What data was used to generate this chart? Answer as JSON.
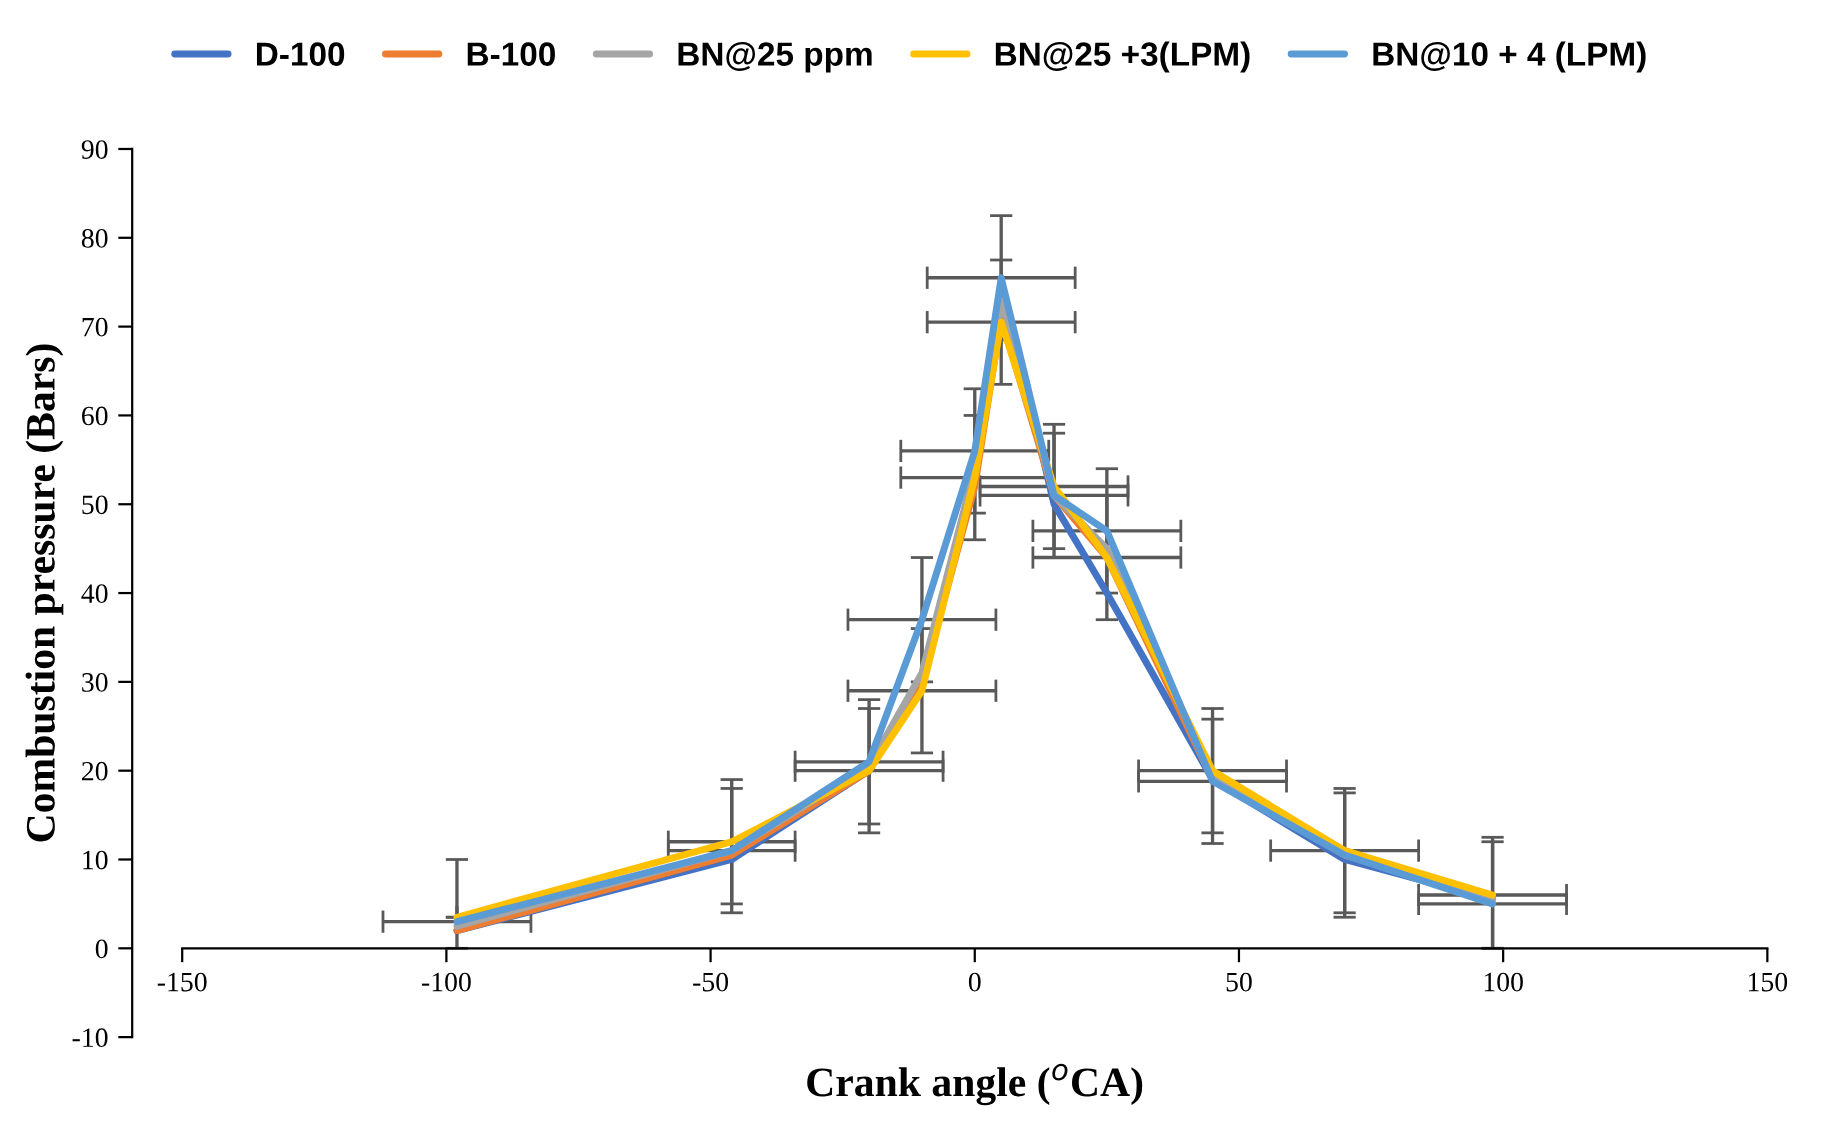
{
  "chart_data": {
    "type": "line",
    "xlabel": "Crank angle ($^{o}$CA)",
    "ylabel": "Combustion pressure (Bars)",
    "x": [
      -98,
      -46,
      -20,
      -10,
      0,
      5,
      15,
      25,
      45,
      70,
      98
    ],
    "series": [
      {
        "name": "D-100",
        "color": "#4472c4",
        "values": [
          2,
          10,
          20,
          30,
          54,
          75,
          50,
          40,
          19,
          10,
          5.5
        ]
      },
      {
        "name": "B-100",
        "color": "#ed7d31",
        "values": [
          2,
          10.5,
          20,
          30,
          52,
          71,
          51,
          44,
          19,
          10.5,
          5.5
        ]
      },
      {
        "name": "BN@25 ppm",
        "color": "#a5a5a5",
        "values": [
          2.5,
          11,
          20.5,
          31,
          54,
          73,
          51,
          45,
          19.5,
          11,
          5.5
        ]
      },
      {
        "name": "BN@25 +3(LPM)",
        "color": "#ffc000",
        "values": [
          3.5,
          12,
          20,
          29,
          53,
          70.5,
          52,
          44,
          20,
          11,
          6
        ],
        "errors": [
          null,
          7,
          7,
          7,
          7,
          7,
          7,
          7,
          7,
          7,
          [
            0,
            12.5
          ]
        ],
        "xerrors": [
          null,
          12,
          14,
          14,
          14,
          14,
          14,
          14,
          14,
          14,
          14
        ]
      },
      {
        "name": "BN@10 + 4 (LPM)",
        "color": "#5b9bd5",
        "values": [
          3,
          11,
          21,
          37,
          56,
          75.5,
          51,
          47,
          18.8,
          10.5,
          5
        ],
        "errors": [
          [
            0,
            10
          ],
          7,
          7,
          7,
          7,
          7,
          7,
          7,
          7,
          7,
          [
            0,
            12
          ]
        ],
        "xerrors": [
          14,
          12,
          14,
          14,
          14,
          14,
          14,
          14,
          14,
          null,
          14
        ]
      }
    ],
    "xlim": [
      -150,
      150
    ],
    "ylim": [
      -10,
      90
    ],
    "xticks": [
      -150,
      -100,
      -50,
      0,
      50,
      100,
      150
    ],
    "yticks": [
      -10,
      0,
      10,
      20,
      30,
      40,
      50,
      60,
      70,
      80,
      90
    ],
    "grid": false,
    "legend": "top",
    "marker": "none",
    "line_style": "solid"
  }
}
